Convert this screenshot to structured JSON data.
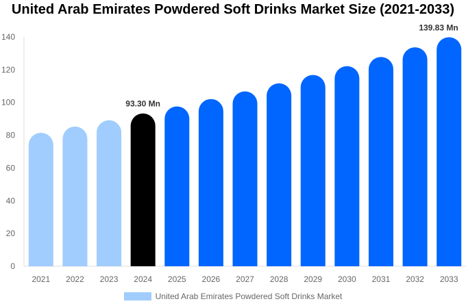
{
  "chart_data": {
    "type": "bar",
    "title": "United Arab Emirates Powdered Soft Drinks Market Size (2021-2033)",
    "categories": [
      "2021",
      "2022",
      "2023",
      "2024",
      "2025",
      "2026",
      "2027",
      "2028",
      "2029",
      "2030",
      "2031",
      "2032",
      "2033"
    ],
    "series": [
      {
        "name": "United Arab Emirates Powdered Soft Drinks Market",
        "values": [
          81.5,
          85.3,
          89.2,
          93.3,
          97.6,
          102.1,
          106.8,
          111.7,
          116.8,
          122.2,
          127.8,
          133.7,
          139.83
        ]
      }
    ],
    "data_labels": [
      {
        "category": "2024",
        "text": "93.30 Mn"
      },
      {
        "category": "2033",
        "text": "139.83 Mn"
      }
    ],
    "ylim": [
      0,
      140
    ],
    "yticks": [
      0,
      20,
      40,
      60,
      80,
      100,
      120,
      140
    ],
    "grid": false,
    "legend_position": "bottom",
    "colors": {
      "historical": "#a0cdfd",
      "base_year": "#000000",
      "forecast": "#0066ff",
      "axis": "#dddddd"
    }
  }
}
